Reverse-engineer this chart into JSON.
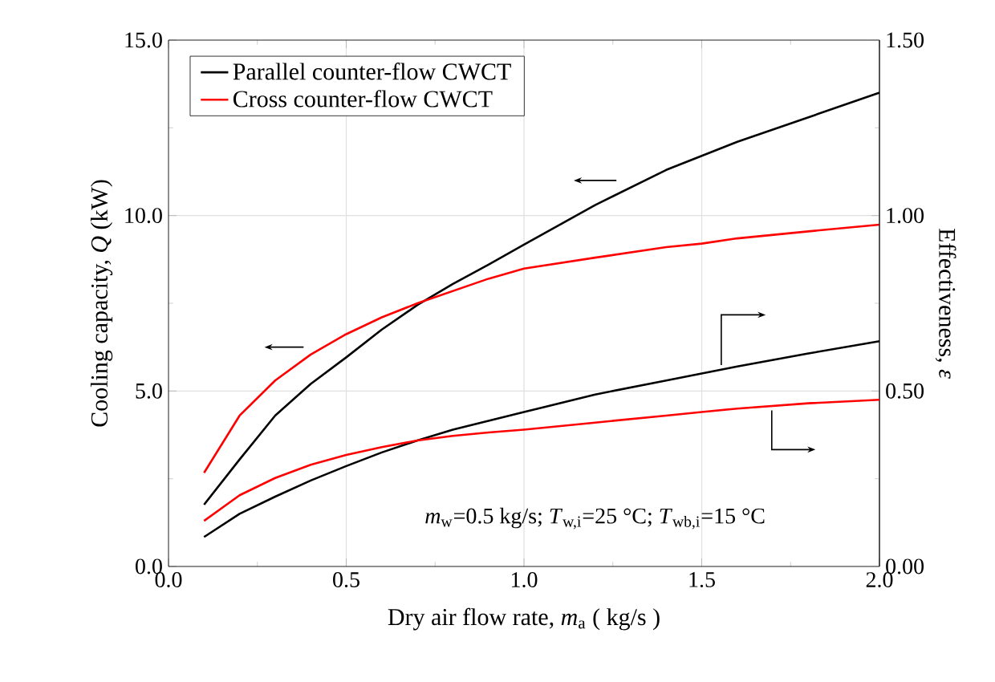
{
  "chart_data": {
    "type": "line",
    "xlabel": "Dry air flow rate, *m*$_{a}$ ( kg/s )",
    "ylabel": "Cooling capacity, *Q* (kW)",
    "y2label": "Effectiveness, *ε*",
    "x": [
      0.1,
      0.2,
      0.3,
      0.4,
      0.5,
      0.6,
      0.7,
      0.8,
      0.9,
      1.0,
      1.2,
      1.4,
      1.5,
      1.6,
      1.8,
      2.0
    ],
    "series": [
      {
        "name": "Parallel counter-flow CWCT",
        "color": "#000000",
        "values": [
          1.76,
          3.05,
          4.3,
          5.2,
          5.96,
          6.75,
          7.45,
          8.05,
          8.6,
          9.17,
          10.3,
          11.3,
          11.7,
          12.1,
          12.8,
          13.5
        ]
      },
      {
        "name": "Cross counter-flow CWCT",
        "color": "#ff0000",
        "values": [
          2.67,
          4.3,
          5.3,
          6.04,
          6.62,
          7.1,
          7.5,
          7.85,
          8.2,
          8.49,
          8.8,
          9.1,
          9.2,
          9.35,
          9.55,
          9.74
        ]
      },
      {
        "color": "#000000",
        "axis": "y2",
        "values": [
          0.084,
          0.15,
          0.199,
          0.245,
          0.286,
          0.325,
          0.359,
          0.39,
          0.415,
          0.44,
          0.49,
          0.53,
          0.55,
          0.57,
          0.607,
          0.642
        ]
      },
      {
        "color": "#ff0000",
        "axis": "y2",
        "values": [
          0.13,
          0.203,
          0.252,
          0.29,
          0.318,
          0.34,
          0.359,
          0.372,
          0.382,
          0.39,
          0.41,
          0.43,
          0.44,
          0.45,
          0.465,
          0.475
        ]
      }
    ],
    "xlim": [
      0,
      2.0
    ],
    "xticks": [
      {
        "value": 0,
        "label": "0.0"
      },
      {
        "value": 0.5,
        "label": "0.5"
      },
      {
        "value": 1.0,
        "label": "1.0"
      },
      {
        "value": 1.5,
        "label": "1.5"
      },
      {
        "value": 2.0,
        "label": "2.0"
      }
    ],
    "ylim": [
      0,
      15
    ],
    "yticks": [
      {
        "value": 0,
        "label": "0.0"
      },
      {
        "value": 5,
        "label": "5.0"
      },
      {
        "value": 10,
        "label": "10.0"
      },
      {
        "value": 15,
        "label": "15.0"
      }
    ],
    "y2lim": [
      0,
      1.5
    ],
    "y2ticks": [
      {
        "value": 0,
        "label": "0.00"
      },
      {
        "value": 0.5,
        "label": "0.50"
      },
      {
        "value": 1.0,
        "label": "1.00"
      },
      {
        "value": 1.5,
        "label": "1.50"
      }
    ],
    "annotations": [
      "*m*$_{w}$=0.5 kg/s; *T*$_{w,i}$=25 °C; *T*$_{wb,i}$=15 °C"
    ],
    "grid": true,
    "legend": "top left",
    "line_style": "solid",
    "marker": "none"
  }
}
